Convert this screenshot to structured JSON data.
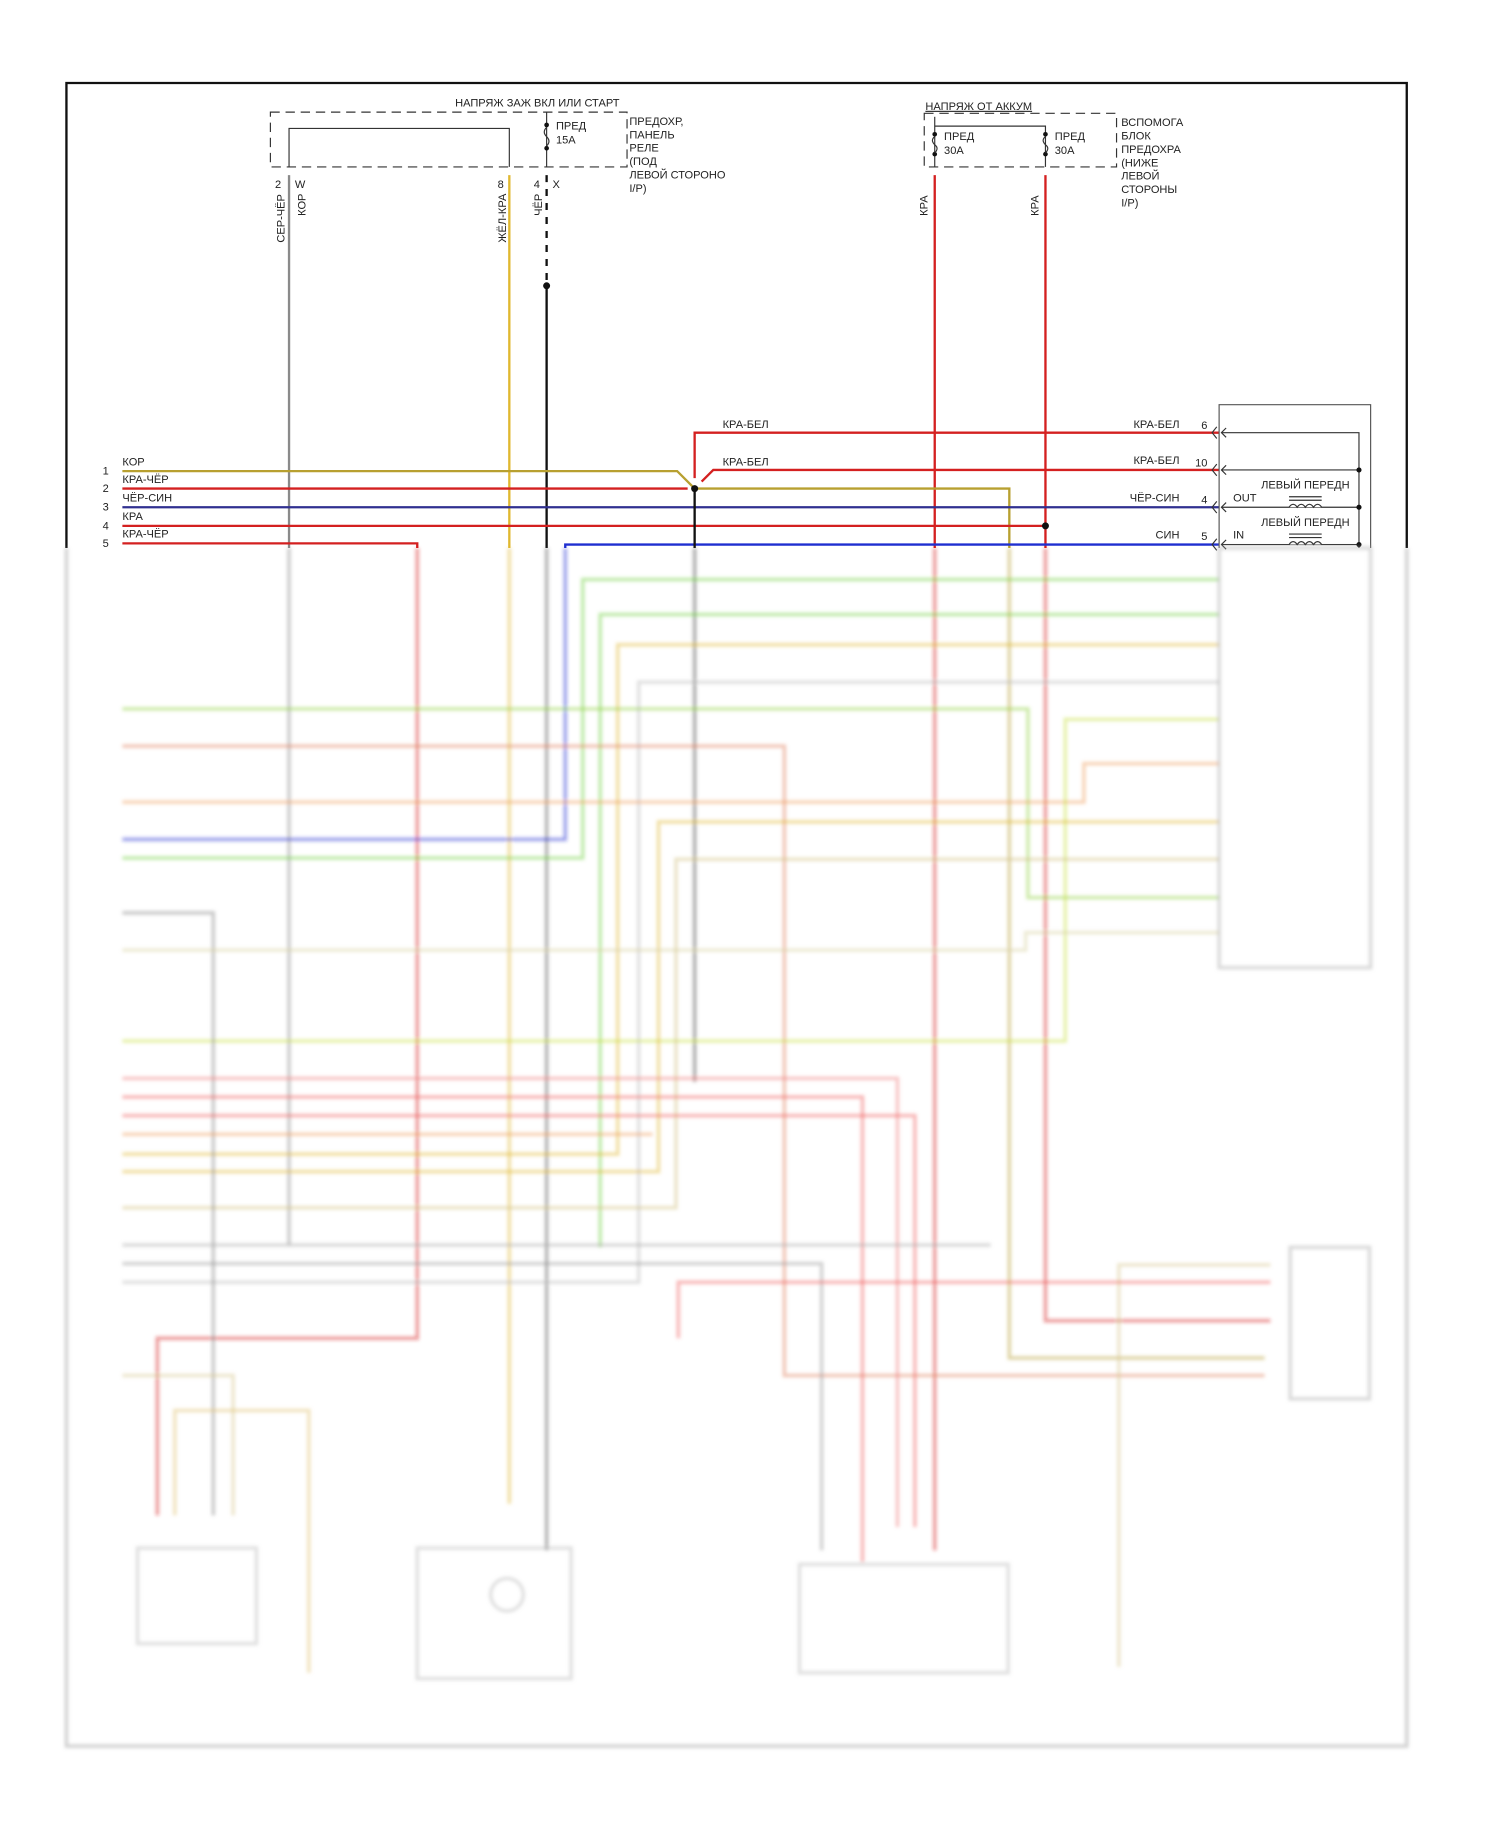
{
  "top_left_block": {
    "supply_label": "НАПРЯЖ ЗАЖ ВКЛ ИЛИ СТАРТ",
    "fuse_label": "ПРЕД",
    "fuse_rating": "15A",
    "location": [
      "ПРЕДОХР,",
      "ПАНЕЛЬ",
      "РЕЛЕ",
      "(ПОД",
      "ЛЕВОЙ СТОРОНО",
      "I/P)"
    ],
    "pins": [
      {
        "pin": "2",
        "code": "W",
        "wire_colors": [
          "СЕР-ЧЁР",
          "КОР"
        ]
      },
      {
        "pin": "8",
        "code": "",
        "wire_colors": [
          "ЖЁЛ-КРА"
        ]
      },
      {
        "pin": "4",
        "code": "X",
        "wire_colors": [
          "ЧЁР"
        ]
      }
    ]
  },
  "top_right_block": {
    "supply_label": "НАПРЯЖ ОТ АККУМ",
    "fuses": [
      {
        "label": "ПРЕД",
        "rating": "30A"
      },
      {
        "label": "ПРЕД",
        "rating": "30A"
      }
    ],
    "location": [
      "ВСПОМОГА",
      "БЛОК",
      "ПРЕДОХРА",
      "(НИЖЕ",
      "ЛЕВОЙ",
      "СТОРОНЫ",
      "I/P)"
    ],
    "wire_colors": [
      "КРА",
      "КРА"
    ]
  },
  "left_connector": [
    {
      "pin": "1",
      "color": "КОР"
    },
    {
      "pin": "2",
      "color": "КРА-ЧЁР"
    },
    {
      "pin": "3",
      "color": "ЧЁР-СИН"
    },
    {
      "pin": "4",
      "color": "КРА"
    },
    {
      "pin": "5",
      "color": "КРА-ЧЁР"
    }
  ],
  "splice_wires": [
    "КРА-БЕЛ",
    "КРА-БЕЛ"
  ],
  "right_component": {
    "pins": [
      {
        "pin": "6",
        "color": "КРА-БЕЛ",
        "signal": ""
      },
      {
        "pin": "10",
        "color": "КРА-БЕЛ",
        "signal": ""
      },
      {
        "pin": "4",
        "color": "ЧЁР-СИН",
        "signal": "OUT",
        "device": "ЛЕВЫЙ ПЕРЕДН"
      },
      {
        "pin": "5",
        "color": "СИН",
        "signal": "IN",
        "device": "ЛЕВЫЙ ПЕРЕДН"
      }
    ]
  },
  "colors": {
    "grey": "#8a8a8a",
    "brown": "#b8a030",
    "yellow": "#e0b830",
    "red": "#d42020",
    "black_blue": "#303090",
    "blue": "#1f2fd0",
    "black": "#111111"
  }
}
